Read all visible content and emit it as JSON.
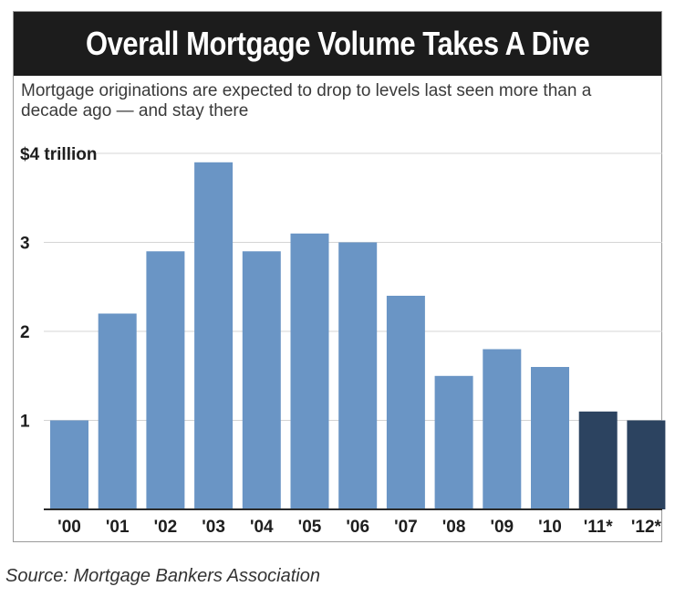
{
  "chart_data": {
    "type": "bar",
    "title": "Overall Mortgage Volume Takes A Dive",
    "subtitle": "Mortgage originations are expected to drop to levels last seen more than a decade ago — and stay there",
    "categories": [
      "'00",
      "'01",
      "'02",
      "'03",
      "'04",
      "'05",
      "'06",
      "'07",
      "'08",
      "'09",
      "'10",
      "'11*",
      "'12*"
    ],
    "values": [
      1.0,
      2.2,
      2.9,
      3.9,
      2.9,
      3.1,
      3.0,
      2.4,
      1.5,
      1.8,
      1.6,
      1.1,
      1.0
    ],
    "projected": [
      false,
      false,
      false,
      false,
      false,
      false,
      false,
      false,
      false,
      false,
      false,
      true,
      true
    ],
    "ylim": [
      0,
      4
    ],
    "y_ticks": [
      1,
      2,
      3,
      4
    ],
    "y_tick_labels": [
      "1",
      "2",
      "3",
      "$4 trillion"
    ],
    "xlabel": "",
    "ylabel": "",
    "grid": true,
    "colors": {
      "actual": "#6a95c5",
      "projected": "#2c4360",
      "grid": "#d4d4d4",
      "axis": "#2a2a2a"
    }
  },
  "source": "Source: Mortgage Bankers Association"
}
